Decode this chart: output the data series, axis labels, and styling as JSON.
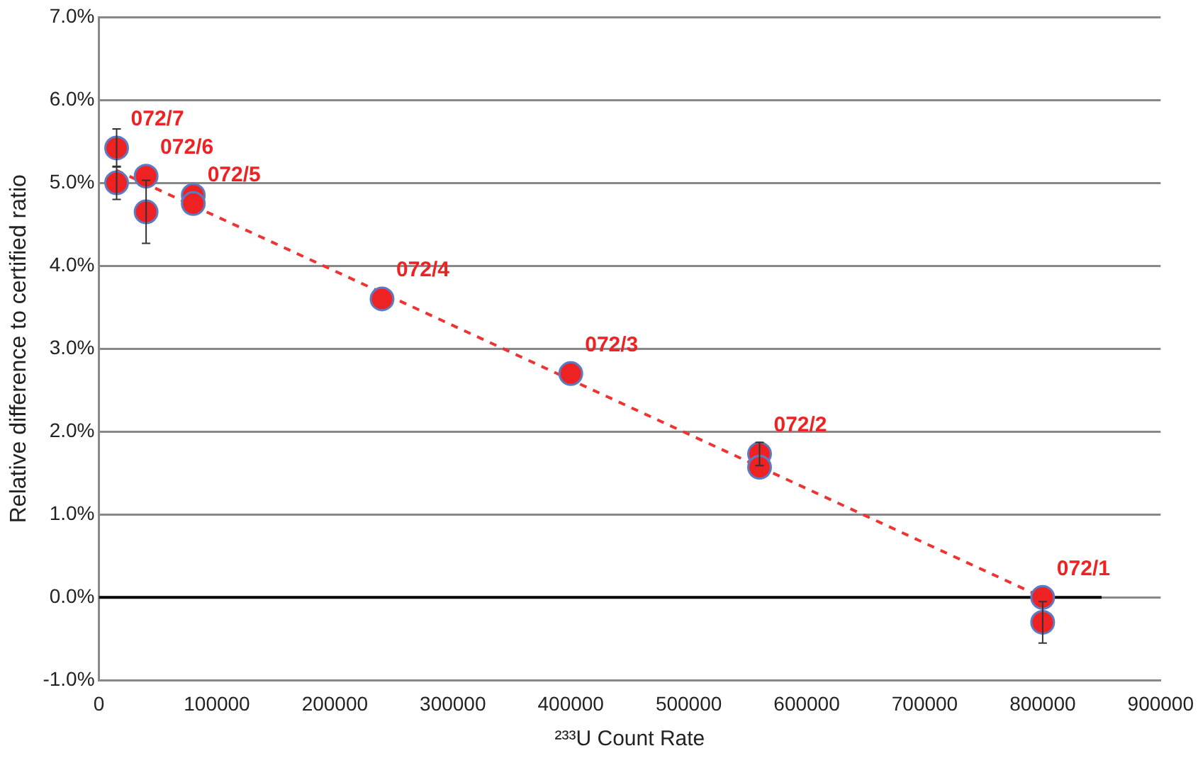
{
  "chart_data": {
    "type": "scatter",
    "xlabel": "²³³U Count Rate",
    "ylabel": "Relative difference to certified ratio",
    "xlim": [
      0,
      900000
    ],
    "xticks": [
      0,
      100000,
      200000,
      300000,
      400000,
      500000,
      600000,
      700000,
      800000,
      900000
    ],
    "ylim": [
      -1,
      7
    ],
    "yticks": [
      {
        "value": -1,
        "label": "-1.0%"
      },
      {
        "value": 0,
        "label": "0.0%"
      },
      {
        "value": 1,
        "label": "1.0%"
      },
      {
        "value": 2,
        "label": "2.0%"
      },
      {
        "value": 3,
        "label": "3.0%"
      },
      {
        "value": 4,
        "label": "4.0%"
      },
      {
        "value": 5,
        "label": "5.0%"
      },
      {
        "value": 6,
        "label": "6.0%"
      },
      {
        "value": 7,
        "label": "7.0%"
      }
    ],
    "grid": "y",
    "legend": false,
    "series": [
      {
        "type": "line",
        "color": "#000000",
        "line_style": "solid",
        "marker": "none",
        "x": [
          0,
          850000
        ],
        "values": [
          0,
          0
        ]
      },
      {
        "type": "line",
        "color": "#ee3333",
        "line_style": "dashed",
        "marker": "none",
        "x": [
          15000,
          800000
        ],
        "values": [
          5.15,
          0
        ]
      },
      {
        "type": "scatter",
        "color": "#ee2222",
        "marker": "circle",
        "x": [
          15000,
          15000,
          40000,
          40000,
          80000,
          80000,
          240000,
          400000,
          560000,
          560000,
          800000,
          800000
        ],
        "values": [
          5.42,
          5.0,
          5.08,
          4.65,
          4.85,
          4.75,
          3.6,
          2.7,
          1.73,
          1.57,
          0.0,
          -0.3
        ],
        "errors": [
          0.23,
          0.2,
          null,
          0.38,
          null,
          null,
          null,
          null,
          0.14,
          null,
          null,
          0.25
        ]
      }
    ],
    "annotations": [
      {
        "text": "072/7",
        "x": 15000,
        "y": 5.42
      },
      {
        "text": "072/6",
        "x": 40000,
        "y": 5.08
      },
      {
        "text": "072/5",
        "x": 80000,
        "y": 4.75
      },
      {
        "text": "072/4",
        "x": 240000,
        "y": 3.6
      },
      {
        "text": "072/3",
        "x": 400000,
        "y": 2.7
      },
      {
        "text": "072/2",
        "x": 560000,
        "y": 1.73
      },
      {
        "text": "072/1",
        "x": 800000,
        "y": 0
      }
    ]
  }
}
